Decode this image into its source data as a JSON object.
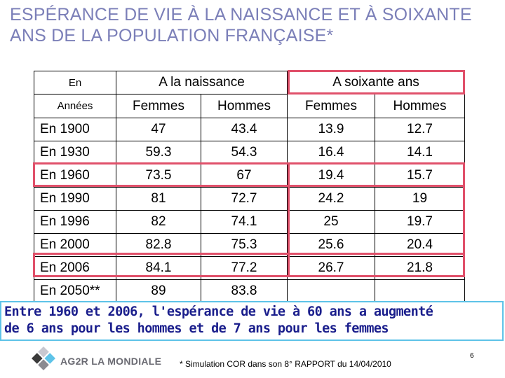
{
  "title": "ESPÉRANCE DE VIE À LA NAISSANCE ET À SOIXANTE ANS DE LA POPULATION FRANÇAISE*",
  "table": {
    "header1": [
      "En",
      "A la naissance",
      "A soixante ans"
    ],
    "header2": [
      "Années",
      "Femmes",
      "Hommes",
      "Femmes",
      "Hommes"
    ],
    "rows": [
      [
        "En 1900",
        "47",
        "43.4",
        "13.9",
        "12.7"
      ],
      [
        "En 1930",
        "59.3",
        "54.3",
        "16.4",
        "14.1"
      ],
      [
        "En 1960",
        "73.5",
        "67",
        "19.4",
        "15.7"
      ],
      [
        "En 1990",
        "81",
        "72.7",
        "24.2",
        "19"
      ],
      [
        "En 1996",
        "82",
        "74.1",
        "25",
        "19.7"
      ],
      [
        "En 2000",
        "82.8",
        "75.3",
        "25.6",
        "20.4"
      ],
      [
        "En 2006",
        "84.1",
        "77.2",
        "26.7",
        "21.8"
      ],
      [
        "En 2050**",
        "89",
        "83.8",
        "",
        ""
      ]
    ]
  },
  "note": {
    "line1": "Entre 1960 et 2006, l'espérance de vie à 60 ans a augmenté",
    "line2": "de 6 ans pour les hommes et de 7 ans pour les femmes"
  },
  "logo_text": "AG2R LA MONDIALE",
  "footnote": "* Simulation COR dans son 8° RAPPORT du 14/04/2010",
  "page_number": "6",
  "colors": {
    "title": "#7b7fb8",
    "highlight": "#e0506a",
    "note_border": "#5ec3e8",
    "note_text": "#1a1e8c"
  }
}
